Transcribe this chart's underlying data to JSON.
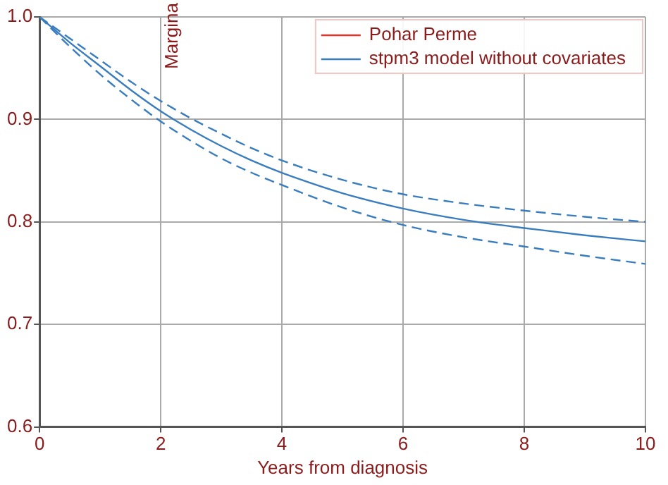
{
  "chart_data": {
    "type": "line",
    "xlabel": "Years from diagnosis",
    "annotations": [
      "Margina"
    ],
    "x": [
      0,
      0.5,
      1,
      1.5,
      2,
      2.5,
      3,
      3.5,
      4,
      5,
      6,
      7,
      8,
      9,
      10
    ],
    "series": [
      {
        "name": "Pohar Perme",
        "color": "#e8322a",
        "values": [
          null,
          null,
          null,
          null,
          null,
          null,
          null,
          null,
          null,
          null,
          null,
          null,
          null,
          null,
          null
        ]
      },
      {
        "name": "stpm3 model without covariates",
        "color": "#3a7dbf",
        "values": [
          1.0,
          0.975,
          0.952,
          0.929,
          0.908,
          0.89,
          0.874,
          0.86,
          0.848,
          0.828,
          0.813,
          0.802,
          0.794,
          0.787,
          0.781
        ]
      },
      {
        "color": "#3a7dbf",
        "line_style": "dashed",
        "values": [
          1.0,
          0.971,
          0.944,
          0.92,
          0.898,
          0.879,
          0.862,
          0.848,
          0.836,
          0.814,
          0.797,
          0.785,
          0.776,
          0.767,
          0.759
        ]
      },
      {
        "color": "#3a7dbf",
        "line_style": "dashed",
        "values": [
          1.0,
          0.979,
          0.958,
          0.937,
          0.918,
          0.901,
          0.886,
          0.872,
          0.86,
          0.841,
          0.827,
          0.818,
          0.811,
          0.805,
          0.8
        ]
      }
    ],
    "xlim": [
      0,
      10
    ],
    "xticks": [
      0,
      2,
      4,
      6,
      8,
      10
    ],
    "ylim": [
      0.6,
      1.0
    ],
    "yticks": [
      {
        "value": 0.6,
        "label": "0.6"
      },
      {
        "value": 0.7,
        "label": "0.7"
      },
      {
        "value": 0.8,
        "label": "0.8"
      },
      {
        "value": 0.9,
        "label": "0.9"
      },
      {
        "value": 1.0,
        "label": "1.0"
      }
    ],
    "grid": true,
    "legend": "top right",
    "marker": "none",
    "line_style": "solid"
  }
}
